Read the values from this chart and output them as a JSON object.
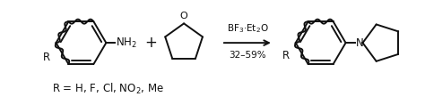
{
  "background_color": "#ffffff",
  "figsize": [
    4.74,
    1.18
  ],
  "dpi": 100,
  "arrow_label_top": "BF$_3$·Et$_2$O",
  "arrow_label_bottom": "32–59%",
  "substituent_label": "R = H, F, Cl, NO$_2$, Me",
  "line_color": "#111111",
  "line_width": 1.4,
  "font_size_main": 8.5,
  "font_size_arrow": 7.5,
  "font_size_sub": 8.5,
  "font_size_plus": 12
}
